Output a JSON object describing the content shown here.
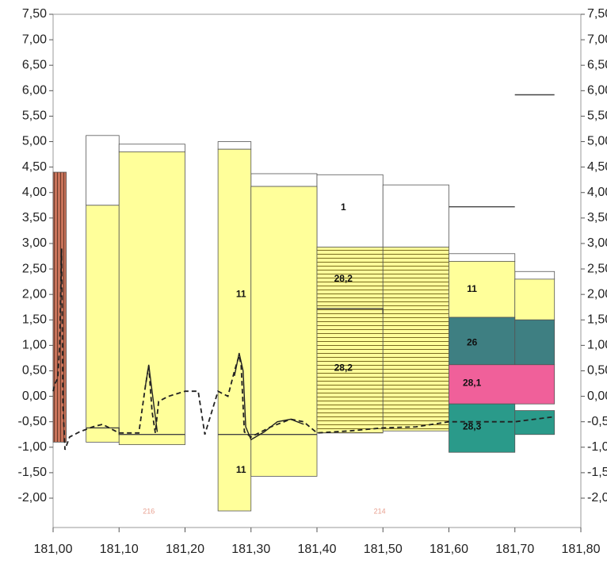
{
  "chart_data": {
    "type": "area",
    "title": "",
    "xlabel": "",
    "ylabel": "",
    "xlim": [
      181.0,
      181.8
    ],
    "ylim": [
      -2.6,
      7.5
    ],
    "grid": false,
    "x_ticks": [
      "181,00",
      "181,10",
      "181,20",
      "181,30",
      "181,40",
      "181,50",
      "181,60",
      "181,70",
      "181,80"
    ],
    "x_tick_values": [
      181.0,
      181.1,
      181.2,
      181.3,
      181.4,
      181.5,
      181.6,
      181.7,
      181.8
    ],
    "y_ticks": [
      "7,50",
      "7,00",
      "6,50",
      "6,00",
      "5,50",
      "5,00",
      "4,50",
      "4,00",
      "3,50",
      "3,00",
      "2,50",
      "2,00",
      "1,50",
      "1,00",
      "0,50",
      "0,00",
      "-0,50",
      "-1,00",
      "-1,50",
      "-2,00"
    ],
    "y_tick_values": [
      7.5,
      7.0,
      6.5,
      6.0,
      5.5,
      5.0,
      4.5,
      4.0,
      3.5,
      3.0,
      2.5,
      2.0,
      1.5,
      1.0,
      0.5,
      0.0,
      -0.5,
      -1.0,
      -1.5,
      -2.0
    ],
    "layers": [
      {
        "name": "brown",
        "fill": "#c8735a",
        "pattern": "vstripe",
        "x0": 181.0,
        "x1": 181.02,
        "y0": -0.9,
        "y1": 4.4
      },
      {
        "name": "1",
        "fill": "#ffffff",
        "x0": 181.05,
        "x1": 181.1,
        "y0": 3.75,
        "y1": 5.12
      },
      {
        "name": "1",
        "fill": "#ffffff",
        "x0": 181.1,
        "x1": 181.2,
        "y0": 4.8,
        "y1": 4.95
      },
      {
        "name": "1",
        "fill": "#ffffff",
        "x0": 181.25,
        "x1": 181.3,
        "y0": 4.85,
        "y1": 5.0
      },
      {
        "name": "1",
        "fill": "#ffffff",
        "x0": 181.3,
        "x1": 181.4,
        "y0": 4.12,
        "y1": 4.37
      },
      {
        "name": "1",
        "fill": "#ffffff",
        "x0": 181.4,
        "x1": 181.5,
        "y0": 2.93,
        "y1": 4.35
      },
      {
        "name": "1",
        "fill": "#ffffff",
        "x0": 181.5,
        "x1": 181.6,
        "y0": 2.93,
        "y1": 4.15
      },
      {
        "name": "1",
        "fill": "#ffffff",
        "x0": 181.6,
        "x1": 181.7,
        "y0": 2.65,
        "y1": 2.8
      },
      {
        "name": "1",
        "fill": "#ffffff",
        "x0": 181.7,
        "x1": 181.76,
        "y0": 2.3,
        "y1": 2.45
      },
      {
        "name": "11",
        "fill": "#ffff9a",
        "x0": 181.05,
        "x1": 181.1,
        "y0": -0.9,
        "y1": 3.75
      },
      {
        "name": "11",
        "fill": "#ffff9a",
        "x0": 181.1,
        "x1": 181.2,
        "y0": -0.95,
        "y1": 4.8
      },
      {
        "name": "11",
        "fill": "#ffff9a",
        "x0": 181.25,
        "x1": 181.3,
        "y0": -2.25,
        "y1": 4.85
      },
      {
        "name": "11",
        "fill": "#ffff9a",
        "x0": 181.3,
        "x1": 181.4,
        "y0": -1.57,
        "y1": 4.12
      },
      {
        "name": "28,2",
        "fill": "#ffff9a",
        "pattern": "hstripe",
        "x0": 181.4,
        "x1": 181.5,
        "y0": -0.72,
        "y1": 2.93
      },
      {
        "name": "28,2",
        "fill": "#ffff9a",
        "pattern": "hstripe",
        "x0": 181.5,
        "x1": 181.6,
        "y0": -0.68,
        "y1": 2.93
      },
      {
        "name": "11",
        "fill": "#ffff9a",
        "x0": 181.6,
        "x1": 181.7,
        "y0": 1.55,
        "y1": 2.65
      },
      {
        "name": "11",
        "fill": "#ffff9a",
        "x0": 181.7,
        "x1": 181.76,
        "y0": 1.5,
        "y1": 2.3
      },
      {
        "name": "26",
        "fill": "#3e7f82",
        "x0": 181.6,
        "x1": 181.7,
        "y0": 0.62,
        "y1": 1.55
      },
      {
        "name": "26",
        "fill": "#3e7f82",
        "x0": 181.7,
        "x1": 181.76,
        "y0": 0.62,
        "y1": 1.5
      },
      {
        "name": "28,1",
        "fill": "#f0609a",
        "x0": 181.6,
        "x1": 181.76,
        "y0": -0.15,
        "y1": 0.62
      },
      {
        "name": "28,3",
        "fill": "#2a9a8a",
        "x0": 181.6,
        "x1": 181.7,
        "y0": -1.1,
        "y1": -0.15
      },
      {
        "name": "28,3",
        "fill": "#2a9a8a",
        "x0": 181.7,
        "x1": 181.76,
        "y0": -0.75,
        "y1": -0.28
      }
    ],
    "annotations": [
      {
        "text": "1",
        "x": 181.44,
        "y": 3.7,
        "color": "#111111"
      },
      {
        "text": "28,2",
        "x": 181.44,
        "y": 2.3,
        "color": "#111111"
      },
      {
        "text": "28,2",
        "x": 181.44,
        "y": 0.55,
        "color": "#111111"
      },
      {
        "text": "11",
        "x": 181.285,
        "y": 2.0,
        "color": "#111111"
      },
      {
        "text": "11",
        "x": 181.285,
        "y": -1.45,
        "color": "#111111"
      },
      {
        "text": "11",
        "x": 181.635,
        "y": 2.1,
        "color": "#111111"
      },
      {
        "text": "26",
        "x": 181.635,
        "y": 1.05,
        "color": "#ffffff"
      },
      {
        "text": "28,1",
        "x": 181.635,
        "y": 0.25,
        "color": "#111111"
      },
      {
        "text": "28,3",
        "x": 181.635,
        "y": -0.6,
        "color": "#111111"
      }
    ],
    "lines": [
      {
        "name": "step",
        "style": "solid",
        "color": "#444444",
        "points": [
          [
            181.05,
            -0.62
          ],
          [
            181.1,
            -0.62
          ],
          [
            181.1,
            -0.75
          ],
          [
            181.2,
            -0.75
          ]
        ]
      },
      {
        "name": "step",
        "style": "solid",
        "color": "#444444",
        "points": [
          [
            181.25,
            -0.75
          ],
          [
            181.4,
            -0.75
          ]
        ]
      },
      {
        "name": "step",
        "style": "solid",
        "color": "#444444",
        "points": [
          [
            181.4,
            1.72
          ],
          [
            181.5,
            1.72
          ],
          [
            181.5,
            1.62
          ]
        ]
      },
      {
        "name": "step",
        "style": "solid",
        "color": "#444444",
        "points": [
          [
            181.6,
            3.72
          ],
          [
            181.7,
            3.72
          ]
        ]
      },
      {
        "name": "step",
        "style": "solid",
        "color": "#444444",
        "points": [
          [
            181.7,
            5.92
          ],
          [
            181.76,
            5.92
          ]
        ]
      },
      {
        "name": "profile",
        "style": "dashed",
        "color": "#222222",
        "points": [
          [
            181.0,
            0.1
          ],
          [
            181.003,
            0.25
          ],
          [
            181.007,
            0.35
          ],
          [
            181.01,
            1.0
          ],
          [
            181.013,
            2.9
          ],
          [
            181.015,
            -0.2
          ],
          [
            181.018,
            -1.05
          ],
          [
            181.025,
            -0.8
          ],
          [
            181.04,
            -0.7
          ],
          [
            181.06,
            -0.6
          ],
          [
            181.075,
            -0.55
          ],
          [
            181.1,
            -0.72
          ],
          [
            181.13,
            -0.72
          ],
          [
            181.14,
            0.2
          ],
          [
            181.145,
            0.6
          ],
          [
            181.15,
            -0.3
          ],
          [
            181.155,
            -0.72
          ],
          [
            181.16,
            -0.1
          ],
          [
            181.175,
            0.0
          ],
          [
            181.2,
            0.1
          ],
          [
            181.22,
            0.1
          ],
          [
            181.23,
            -0.75
          ],
          [
            181.25,
            0.1
          ],
          [
            181.265,
            0.0
          ],
          [
            181.275,
            0.5
          ],
          [
            181.282,
            0.8
          ],
          [
            181.285,
            0.6
          ],
          [
            181.29,
            -0.7
          ],
          [
            181.3,
            -0.8
          ],
          [
            181.33,
            -0.6
          ],
          [
            181.36,
            -0.45
          ],
          [
            181.38,
            -0.5
          ],
          [
            181.4,
            -0.72
          ],
          [
            181.45,
            -0.68
          ],
          [
            181.5,
            -0.62
          ],
          [
            181.55,
            -0.6
          ],
          [
            181.6,
            -0.5
          ],
          [
            181.65,
            -0.5
          ],
          [
            181.7,
            -0.5
          ],
          [
            181.76,
            -0.4
          ]
        ]
      },
      {
        "name": "profile",
        "style": "solid",
        "color": "#222222",
        "points": [
          [
            181.14,
            0.2
          ],
          [
            181.145,
            0.62
          ],
          [
            181.15,
            0.1
          ],
          [
            181.158,
            -0.7
          ]
        ]
      },
      {
        "name": "profile",
        "style": "solid",
        "color": "#222222",
        "points": [
          [
            181.275,
            0.4
          ],
          [
            181.282,
            0.85
          ],
          [
            181.288,
            0.5
          ],
          [
            181.292,
            -0.6
          ],
          [
            181.3,
            -0.85
          ],
          [
            181.32,
            -0.7
          ],
          [
            181.34,
            -0.5
          ],
          [
            181.36,
            -0.45
          ],
          [
            181.38,
            -0.55
          ]
        ]
      }
    ],
    "faint_labels": [
      {
        "text": "216",
        "x": 181.145,
        "y": -2.3
      },
      {
        "text": "214",
        "x": 181.495,
        "y": -2.3
      }
    ]
  }
}
